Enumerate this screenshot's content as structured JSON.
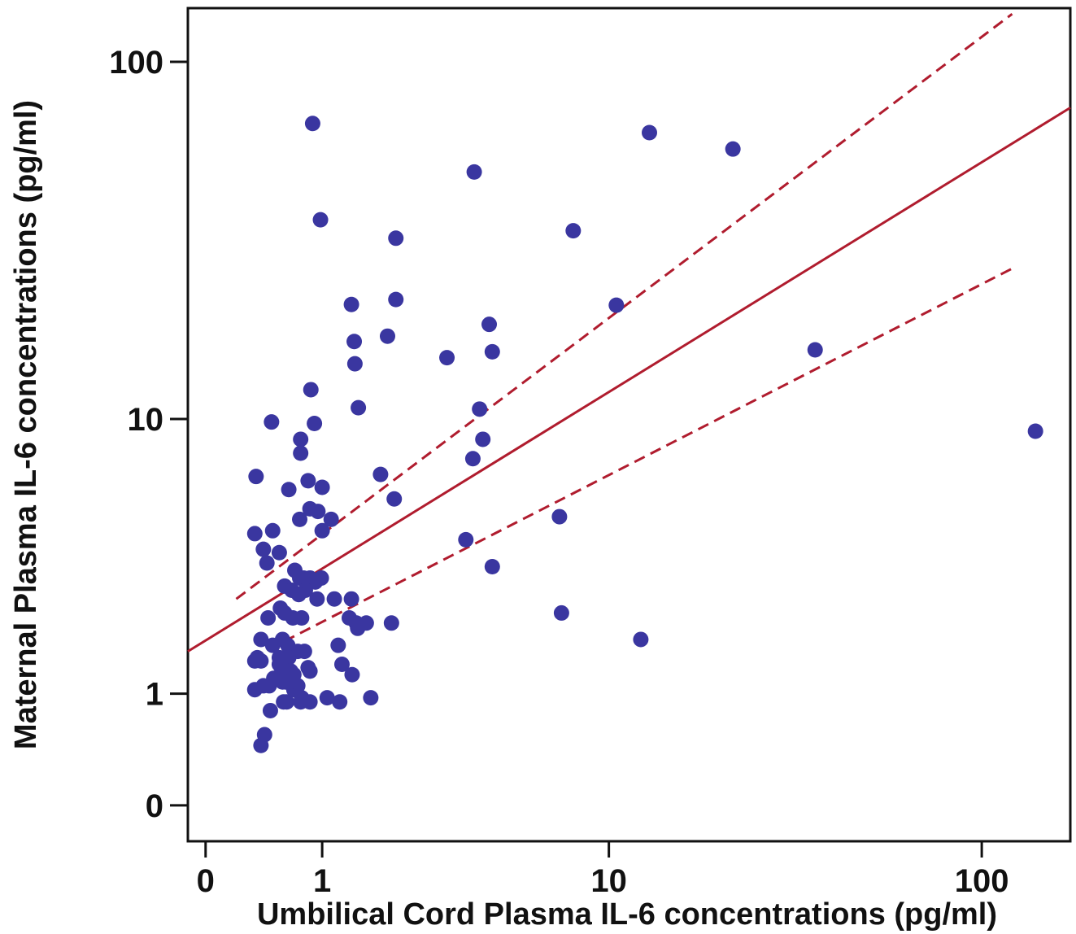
{
  "colors": {
    "points": "#3a36a0",
    "fit_line": "#b01c2e",
    "frame": "#111111"
  },
  "chart_data": {
    "type": "scatter",
    "xlabel": "Umbilical Cord Plasma IL-6 concentrations (pg/ml)",
    "ylabel": "Maternal Plasma IL-6 concentrations (pg/ml)",
    "x_scale": "log(x+1)",
    "y_scale": "log(y+1)",
    "xlim": [
      -0.1,
      170
    ],
    "ylim": [
      -0.2,
      140
    ],
    "x_ticks": [
      {
        "value": 0,
        "label": "0"
      },
      {
        "value": 1,
        "label": "1"
      },
      {
        "value": 10,
        "label": "10"
      },
      {
        "value": 100,
        "label": "100"
      }
    ],
    "y_ticks": [
      {
        "value": 0,
        "label": "0"
      },
      {
        "value": 1,
        "label": "1"
      },
      {
        "value": 10,
        "label": "10"
      },
      {
        "value": 100,
        "label": "100"
      }
    ],
    "grid": false,
    "legend": "none",
    "points": [
      [
        0.89,
        67.9
      ],
      [
        3.94,
        50.0
      ],
      [
        13.0,
        64.1
      ],
      [
        22.0,
        57.8
      ],
      [
        0.98,
        36.9
      ],
      [
        2.1,
        32.8
      ],
      [
        7.9,
        34.4
      ],
      [
        1.38,
        21.4
      ],
      [
        2.1,
        22.1
      ],
      [
        4.4,
        18.8
      ],
      [
        10.5,
        21.3
      ],
      [
        1.42,
        16.8
      ],
      [
        1.95,
        17.4
      ],
      [
        4.5,
        15.7
      ],
      [
        3.2,
        15.1
      ],
      [
        1.43,
        14.5
      ],
      [
        36.5,
        15.9
      ],
      [
        0.87,
        12.2
      ],
      [
        1.48,
        10.8
      ],
      [
        4.1,
        10.7
      ],
      [
        0.48,
        9.8
      ],
      [
        0.91,
        9.7
      ],
      [
        4.2,
        8.7
      ],
      [
        0.76,
        8.7
      ],
      [
        0.76,
        7.9
      ],
      [
        3.9,
        7.6
      ],
      [
        138,
        9.2
      ],
      [
        0.35,
        6.7
      ],
      [
        1.83,
        6.8
      ],
      [
        0.84,
        6.5
      ],
      [
        1.0,
        6.2
      ],
      [
        0.64,
        6.1
      ],
      [
        2.07,
        5.7
      ],
      [
        0.86,
        5.3
      ],
      [
        0.95,
        5.2
      ],
      [
        0.75,
        4.9
      ],
      [
        1.11,
        4.9
      ],
      [
        7.2,
        5.0
      ],
      [
        0.34,
        4.4
      ],
      [
        0.49,
        4.5
      ],
      [
        1.0,
        4.5
      ],
      [
        3.7,
        4.2
      ],
      [
        0.41,
        3.9
      ],
      [
        0.55,
        3.8
      ],
      [
        0.44,
        3.5
      ],
      [
        4.5,
        3.4
      ],
      [
        0.75,
        3.1
      ],
      [
        0.7,
        3.3
      ],
      [
        0.79,
        3.1
      ],
      [
        0.86,
        3.1
      ],
      [
        0.99,
        3.1
      ],
      [
        0.92,
        3.0
      ],
      [
        0.6,
        2.9
      ],
      [
        0.67,
        2.8
      ],
      [
        0.81,
        2.8
      ],
      [
        0.74,
        2.7
      ],
      [
        0.94,
        2.6
      ],
      [
        1.15,
        2.6
      ],
      [
        1.38,
        2.6
      ],
      [
        0.56,
        2.4
      ],
      [
        7.3,
        2.3
      ],
      [
        0.45,
        2.2
      ],
      [
        0.6,
        2.3
      ],
      [
        0.68,
        2.2
      ],
      [
        0.77,
        2.2
      ],
      [
        1.35,
        2.2
      ],
      [
        1.45,
        2.1
      ],
      [
        1.47,
        2.0
      ],
      [
        1.6,
        2.1
      ],
      [
        2.02,
        2.1
      ],
      [
        0.39,
        1.8
      ],
      [
        0.49,
        1.7
      ],
      [
        0.58,
        1.8
      ],
      [
        0.63,
        1.7
      ],
      [
        0.73,
        1.6
      ],
      [
        0.8,
        1.6
      ],
      [
        1.2,
        1.7
      ],
      [
        12.3,
        1.8
      ],
      [
        0.36,
        1.5
      ],
      [
        0.39,
        1.45
      ],
      [
        0.55,
        1.5
      ],
      [
        0.64,
        1.5
      ],
      [
        0.34,
        1.45
      ],
      [
        0.55,
        1.4
      ],
      [
        0.57,
        1.35
      ],
      [
        0.66,
        1.3
      ],
      [
        0.69,
        1.25
      ],
      [
        0.84,
        1.35
      ],
      [
        0.86,
        1.3
      ],
      [
        1.25,
        1.4
      ],
      [
        1.39,
        1.25
      ],
      [
        0.5,
        1.2
      ],
      [
        0.58,
        1.15
      ],
      [
        0.46,
        1.1
      ],
      [
        0.41,
        1.1
      ],
      [
        0.34,
        1.05
      ],
      [
        0.61,
        1.15
      ],
      [
        0.69,
        1.05
      ],
      [
        0.73,
        1.1
      ],
      [
        0.65,
        1.15
      ],
      [
        0.77,
        0.95
      ],
      [
        0.59,
        0.9
      ],
      [
        0.76,
        0.9
      ],
      [
        1.06,
        0.95
      ],
      [
        1.22,
        0.9
      ],
      [
        1.67,
        0.95
      ],
      [
        0.86,
        0.9
      ],
      [
        0.47,
        0.8
      ],
      [
        0.62,
        0.9
      ],
      [
        0.42,
        0.55
      ],
      [
        0.39,
        0.45
      ]
    ],
    "fit_line": {
      "x": [
        -0.1,
        170
      ],
      "y": [
        1.6,
        75
      ]
    },
    "confidence_upper": {
      "x": [
        0.2,
        120
      ],
      "y": [
        2.6,
        135
      ]
    },
    "confidence_lower": {
      "x": [
        0.32,
        120
      ],
      "y": [
        1.5,
        27
      ]
    }
  }
}
